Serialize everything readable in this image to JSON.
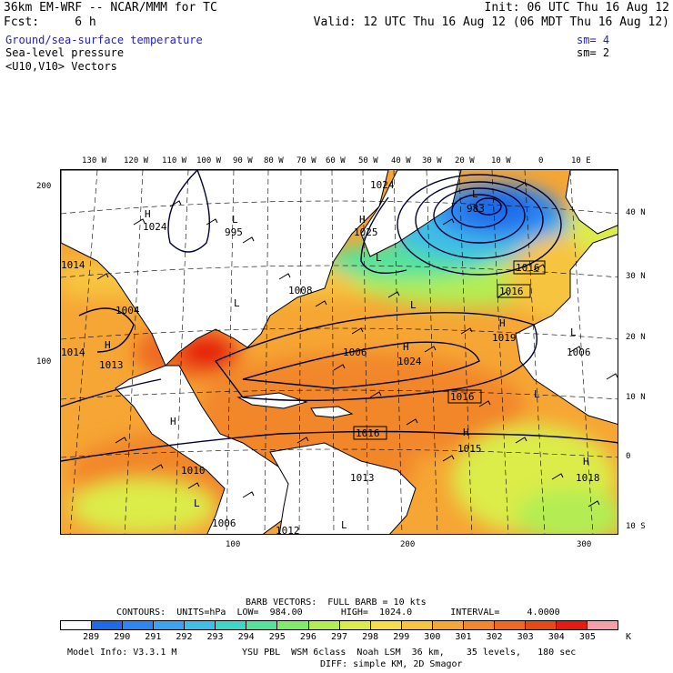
{
  "header": {
    "model_title": "36km EM-WRF -- NCAR/MMM for TC",
    "init": "Init: 06 UTC Thu 16 Aug 12",
    "fcst": "Fcst:     6 h",
    "valid": "Valid: 12 UTC Thu 16 Aug 12 (06 MDT Thu 16 Aug 12)"
  },
  "fields": {
    "shaded": "Ground/sea-surface temperature",
    "shaded_sm": "sm= 4",
    "contour": "Sea-level pressure",
    "contour_sm": "sm= 2",
    "vectors": "<U10,V10> Vectors"
  },
  "axes": {
    "lon_labels": [
      "130 W",
      "120 W",
      "110 W",
      "100 W",
      "90 W",
      "80 W",
      "70 W",
      "60 W",
      "50 W",
      "40 W",
      "30 W",
      "20 W",
      "10 W",
      "0",
      "10 E"
    ],
    "lat_labels": [
      "40 N",
      "30 N",
      "20 N",
      "10 N",
      "0",
      "10 S"
    ],
    "left_grid_labels": [
      "200",
      "100"
    ],
    "bottom_grid_labels": [
      "100",
      "200",
      "300"
    ]
  },
  "pressure_labels": {
    "high_marks": [
      "H",
      "H",
      "H",
      "H",
      "H",
      "H",
      "H",
      "H"
    ],
    "low_marks": [
      "L",
      "L",
      "L",
      "L",
      "L",
      "L",
      "L",
      "L",
      "L"
    ],
    "values": [
      "1024",
      "1024",
      "995",
      "1025",
      "983",
      "1016",
      "1016",
      "1019",
      "1006",
      "1006",
      "1024",
      "1016",
      "1016",
      "1015",
      "1018",
      "1010",
      "1006",
      "1013",
      "1008",
      "1013",
      "1012",
      "1014",
      "1004",
      "1014"
    ]
  },
  "footer": {
    "barb_line": "BARB VECTORS:  FULL BARB = 10 kts",
    "contours_line": "CONTOURS:  UNITS=hPa  LOW=  984.00       HIGH=  1024.0       INTERVAL=     4.0000",
    "units": "K",
    "model_info": "Model Info: V3.3.1 M",
    "physics": "YSU PBL  WSM 6class  Noah LSM  36 km,    35 levels,   180 sec",
    "diffusion": "DIFF: simple KM, 2D Smagor"
  },
  "colorbar": {
    "labels": [
      "289",
      "290",
      "291",
      "292",
      "293",
      "294",
      "295",
      "296",
      "297",
      "298",
      "299",
      "300",
      "301",
      "302",
      "303",
      "304",
      "305"
    ],
    "colors": [
      "#ffffff",
      "#1e6be8",
      "#2f86f0",
      "#3ea2f2",
      "#41bee6",
      "#3fd6c9",
      "#54e39c",
      "#82ea6a",
      "#b4ed52",
      "#dcec48",
      "#f5de48",
      "#f7c43f",
      "#f6a634",
      "#f2872c",
      "#ee6a22",
      "#e64a17",
      "#e61a0f",
      "#f5a0a8"
    ]
  }
}
